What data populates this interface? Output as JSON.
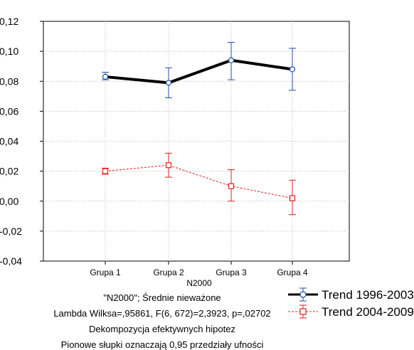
{
  "chart_data": {
    "type": "line",
    "xlabel": "N2000",
    "categories": [
      "Grupa 1",
      "Grupa 2",
      "Grupa 3",
      "Grupa 4"
    ],
    "ylim": [
      -0.04,
      0.12
    ],
    "yticks": [
      "-0,04",
      "-0,02",
      "0,00",
      "0,02",
      "0,04",
      "0,06",
      "0,08",
      "0,10",
      "0,12"
    ],
    "grid": true,
    "legend_position": "bottom-right",
    "series": [
      {
        "name": "Trend 1996-2003",
        "color": "#1f4fa8",
        "line_color": "#000000",
        "values": [
          0.083,
          0.079,
          0.094,
          0.088
        ],
        "lower": [
          0.081,
          0.069,
          0.081,
          0.074
        ],
        "upper": [
          0.086,
          0.089,
          0.106,
          0.102
        ]
      },
      {
        "name": "Trend 2004-2009",
        "color": "#e02020",
        "line_color": "#e02020",
        "values": [
          0.02,
          0.024,
          0.01,
          0.002
        ],
        "lower": [
          0.018,
          0.016,
          -0.0,
          -0.009
        ],
        "upper": [
          0.022,
          0.032,
          0.021,
          0.014
        ]
      }
    ],
    "captions": [
      "\"N2000\"; Średnie nieważone",
      "Lambda Wilksa=,95861, F(6, 672)=2,3923, p=,02702",
      "Dekompozycja efektywnych hipotez",
      "Pionowe słupki oznaczają 0,95 przedziały ufności"
    ]
  }
}
